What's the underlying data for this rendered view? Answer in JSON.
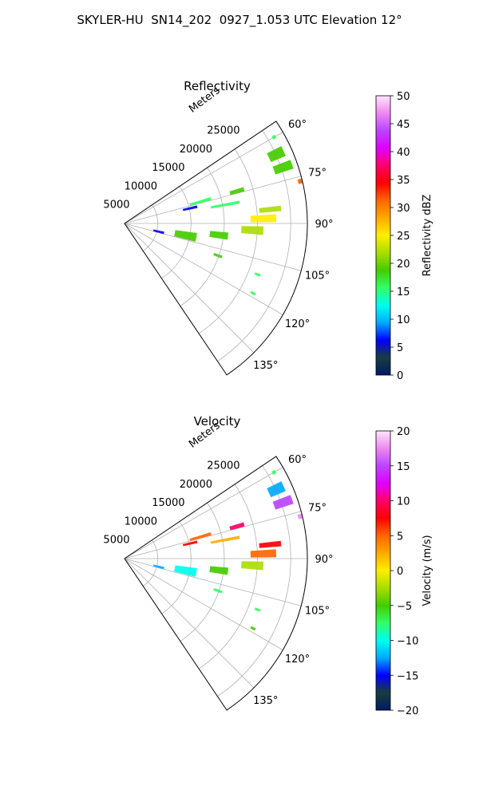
{
  "suptitle": "SKYLER-HU  SN14_202  0927_1.053 UTC Elevation 12°",
  "chart_data": [
    {
      "type": "polar-sector",
      "title": "Reflectivity",
      "radial_label": "Meters",
      "r_ticks": [
        "5000",
        "10000",
        "15000",
        "20000",
        "25000"
      ],
      "rlim": [
        0,
        25000
      ],
      "theta_ticks": [
        "60°",
        "75°",
        "90°",
        "105°",
        "120°",
        "135°"
      ],
      "theta_range_deg": [
        56,
        146
      ],
      "grid": true,
      "colorbar": {
        "label": "Reflectivity dBZ",
        "ticks": [
          "0",
          "5",
          "10",
          "15",
          "20",
          "25",
          "30",
          "35",
          "40",
          "45",
          "50"
        ],
        "range": [
          0,
          50
        ],
        "stops": [
          "#001a66",
          "#1a3d3d",
          "#0000ff",
          "#00aaff",
          "#00ffee",
          "#33ff66",
          "#44cc00",
          "#aadd00",
          "#ffee00",
          "#ffaa00",
          "#ff6600",
          "#ff0000",
          "#ff0066",
          "#dd00ff",
          "#bb44ff",
          "#ee88ee",
          "#ffe6ff"
        ]
      },
      "echo_regions": [
        {
          "az": 60.0,
          "range": 23600,
          "dt": 1.2,
          "dr": 500,
          "value": 15
        },
        {
          "az": 65.5,
          "range": 22800,
          "dt": 3.5,
          "dr": 2200,
          "value": 20
        },
        {
          "az": 70.5,
          "range": 23000,
          "dt": 3.0,
          "dr": 2600,
          "value": 18
        },
        {
          "az": 76.5,
          "range": 25200,
          "dt": 1.5,
          "dr": 1600,
          "value": 32
        },
        {
          "az": 74.0,
          "range": 16000,
          "dt": 2.0,
          "dr": 2000,
          "value": 18
        },
        {
          "az": 74.0,
          "range": 10800,
          "dt": 2.0,
          "dr": 3000,
          "value": 15
        },
        {
          "az": 77.0,
          "range": 9200,
          "dt": 2.0,
          "dr": 2000,
          "value": 5
        },
        {
          "az": 79.5,
          "range": 14000,
          "dt": 1.5,
          "dr": 4000,
          "value": 15
        },
        {
          "az": 84.5,
          "range": 20000,
          "dt": 2.0,
          "dr": 3000,
          "value": 22
        },
        {
          "az": 88.0,
          "range": 19000,
          "dt": 3.0,
          "dr": 3500,
          "value": 24
        },
        {
          "az": 93.0,
          "range": 17500,
          "dt": 3.5,
          "dr": 3000,
          "value": 22
        },
        {
          "az": 97.0,
          "range": 13000,
          "dt": 4.0,
          "dr": 2500,
          "value": 20
        },
        {
          "az": 101.0,
          "range": 8500,
          "dt": 7.0,
          "dr": 3000,
          "value": 18
        },
        {
          "az": 103.5,
          "range": 4800,
          "dt": 3.5,
          "dr": 1500,
          "value": 5
        },
        {
          "az": 109.0,
          "range": 13500,
          "dt": 1.5,
          "dr": 1200,
          "value": 20
        },
        {
          "az": 111.0,
          "range": 19500,
          "dt": 1.0,
          "dr": 800,
          "value": 15
        },
        {
          "az": 118.5,
          "range": 20000,
          "dt": 1.0,
          "dr": 700,
          "value": 15
        }
      ]
    },
    {
      "type": "polar-sector",
      "title": "Velocity",
      "radial_label": "Meters",
      "r_ticks": [
        "5000",
        "10000",
        "15000",
        "20000",
        "25000"
      ],
      "rlim": [
        0,
        25000
      ],
      "theta_ticks": [
        "60°",
        "75°",
        "90°",
        "105°",
        "120°",
        "135°"
      ],
      "theta_range_deg": [
        56,
        146
      ],
      "grid": true,
      "colorbar": {
        "label": "Velocity (m/s)",
        "ticks": [
          "−20",
          "−15",
          "−10",
          "−5",
          "0",
          "5",
          "10",
          "15",
          "20"
        ],
        "range": [
          -20,
          20
        ],
        "stops": [
          "#001a66",
          "#1a3d3d",
          "#0000ff",
          "#00aaff",
          "#00ffee",
          "#33ff66",
          "#44cc00",
          "#aadd00",
          "#ffee00",
          "#ffaa00",
          "#ff6600",
          "#ff0000",
          "#ff0066",
          "#dd00ff",
          "#bb44ff",
          "#ee88ee",
          "#ffe6ff"
        ]
      },
      "echo_regions": [
        {
          "az": 60.0,
          "range": 23600,
          "dt": 1.2,
          "dr": 500,
          "value": -8
        },
        {
          "az": 65.5,
          "range": 22800,
          "dt": 3.5,
          "dr": 2200,
          "value": -12
        },
        {
          "az": 70.5,
          "range": 23000,
          "dt": 3.0,
          "dr": 2600,
          "value": 16
        },
        {
          "az": 76.5,
          "range": 25200,
          "dt": 1.5,
          "dr": 1600,
          "value": 17
        },
        {
          "az": 74.0,
          "range": 16000,
          "dt": 2.0,
          "dr": 2000,
          "value": 11
        },
        {
          "az": 74.0,
          "range": 10800,
          "dt": 2.0,
          "dr": 3000,
          "value": 6
        },
        {
          "az": 77.0,
          "range": 9200,
          "dt": 2.0,
          "dr": 2000,
          "value": 8
        },
        {
          "az": 79.5,
          "range": 14000,
          "dt": 1.5,
          "dr": 4000,
          "value": 3
        },
        {
          "az": 84.5,
          "range": 20000,
          "dt": 2.0,
          "dr": 3000,
          "value": 7
        },
        {
          "az": 88.0,
          "range": 19000,
          "dt": 3.0,
          "dr": 3500,
          "value": 4
        },
        {
          "az": 93.0,
          "range": 17500,
          "dt": 3.5,
          "dr": 3000,
          "value": -2
        },
        {
          "az": 97.0,
          "range": 13000,
          "dt": 4.0,
          "dr": 2500,
          "value": -6
        },
        {
          "az": 101.0,
          "range": 8500,
          "dt": 7.0,
          "dr": 3000,
          "value": -11
        },
        {
          "az": 103.5,
          "range": 4800,
          "dt": 3.5,
          "dr": 1500,
          "value": -13
        },
        {
          "az": 109.0,
          "range": 13500,
          "dt": 1.5,
          "dr": 1200,
          "value": -8
        },
        {
          "az": 111.0,
          "range": 19500,
          "dt": 1.0,
          "dr": 800,
          "value": -7
        },
        {
          "az": 118.5,
          "range": 20000,
          "dt": 1.0,
          "dr": 700,
          "value": -6
        }
      ]
    }
  ]
}
